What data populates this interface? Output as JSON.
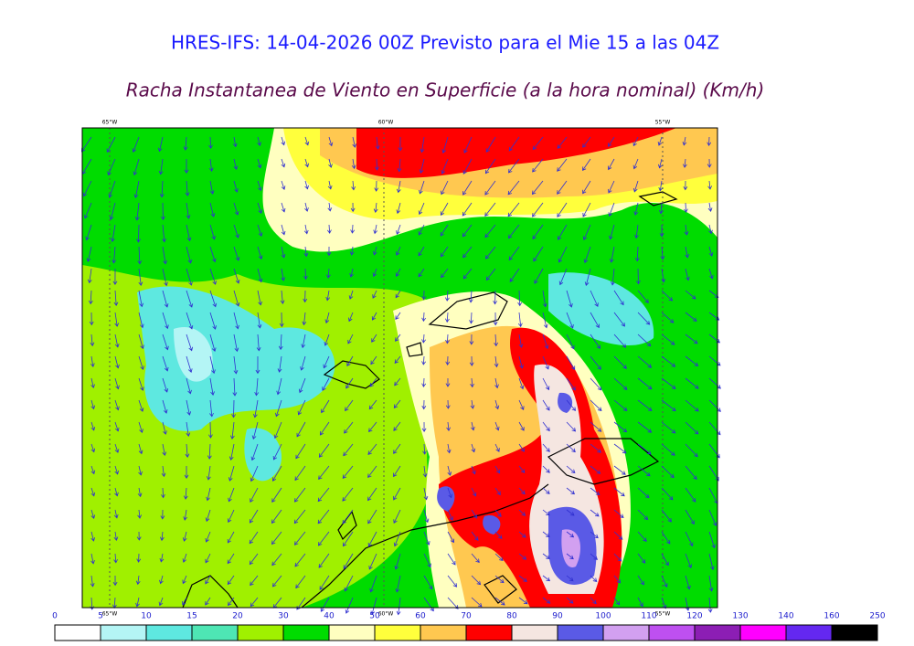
{
  "header": {
    "title": "HRES-IFS: 14-04-2026 00Z Previsto para el Mie 15 a las 04Z",
    "subtitle": "Racha Instantanea de Viento en Superficie (a la hora nominal) (Km/h)"
  },
  "map": {
    "lon_labels": [
      "65°W",
      "60°W",
      "55°W"
    ]
  },
  "colorbar": {
    "levels": [
      0,
      5,
      10,
      15,
      20,
      30,
      40,
      50,
      60,
      70,
      80,
      90,
      100,
      110,
      120,
      130,
      140,
      160,
      250
    ],
    "colors": [
      "#ffffff",
      "#b4f5f5",
      "#5ee8e0",
      "#4ee6b4",
      "#a0f000",
      "#00dc00",
      "#ffffc0",
      "#ffff3c",
      "#ffc850",
      "#ff0000",
      "#f5e6e1",
      "#5a5ae6",
      "#d2a0f0",
      "#be50f0",
      "#8c1eb4",
      "#ff00ff",
      "#6428f0",
      "#000000"
    ]
  }
}
